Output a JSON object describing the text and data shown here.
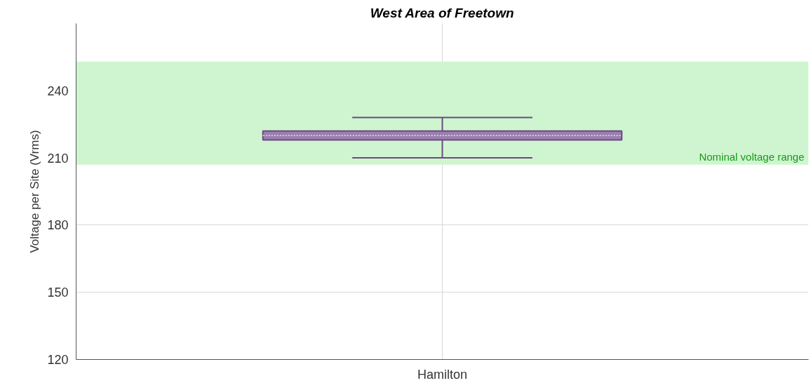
{
  "chart_data": {
    "type": "box",
    "title": "West Area of Freetown",
    "ylabel": "Voltage per Site (Vrms)",
    "categories": [
      "Hamilton"
    ],
    "series": [
      {
        "color": "#6b4a80",
        "boxes": [
          {
            "low": 210,
            "q1": 218,
            "median": 220,
            "q3": 222,
            "high": 228
          }
        ]
      }
    ],
    "ylim": [
      120,
      270
    ],
    "yticks": [
      120,
      150,
      180,
      210,
      240
    ],
    "bands": [
      {
        "axis": "y",
        "from": 207,
        "to": 253,
        "label": "Nominal voltage range",
        "color": "#cff5d0"
      }
    ],
    "grid": true
  }
}
